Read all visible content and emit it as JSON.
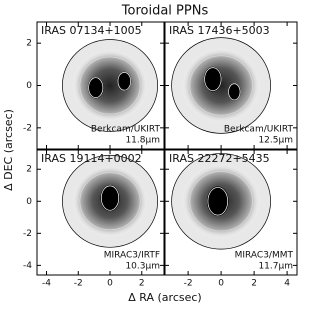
{
  "figure": {
    "title": "Toroidal PPNs",
    "xlabel": "Δ RA (arcsec)",
    "ylabel": "Δ DEC (arcsec)",
    "columns": [
      {
        "xlim": [
          -4.6,
          3.4
        ],
        "xticks": [
          -4,
          -2,
          0,
          2
        ]
      },
      {
        "xlim": [
          -3.4,
          4.6
        ],
        "xticks": [
          -2,
          0,
          2,
          4
        ]
      }
    ],
    "rows": [
      {
        "ylim": [
          -3,
          3
        ],
        "yticks": [
          2,
          0,
          -2
        ]
      },
      {
        "ylim": [
          -4.6,
          3.2
        ],
        "yticks": [
          2,
          0,
          -2,
          -4
        ]
      }
    ],
    "panels": [
      {
        "name": "IRAS 07134+1005",
        "instrument": "Berkcam/UKIRT",
        "wavelength": "11.8μm"
      },
      {
        "name": "IRAS 17436+5003",
        "instrument": "Berkcam/UKIRT",
        "wavelength": "12.5μm"
      },
      {
        "name": "IRAS 19114+0002",
        "instrument": "MIRAC3/IRTF",
        "wavelength": "10.3μm"
      },
      {
        "name": "IRAS 22272+5435",
        "instrument": "MIRAC3/MMT",
        "wavelength": "11.7μm"
      }
    ]
  }
}
